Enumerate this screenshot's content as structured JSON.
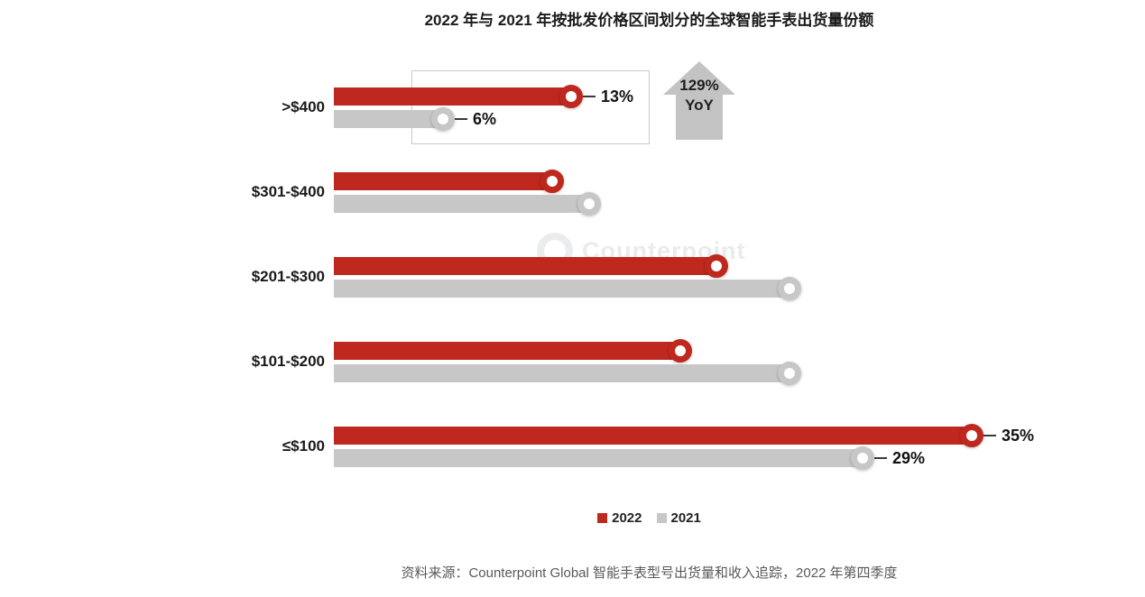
{
  "title": "2022 年与 2021 年按批发价格区间划分的全球智能手表出货量份额",
  "annotation": {
    "line1": "129%",
    "line2": "YoY"
  },
  "watermark": "Counterpoint",
  "legend": [
    {
      "label": "2022",
      "color": "#bf281e"
    },
    {
      "label": "2021",
      "color": "#c7c7c7"
    }
  ],
  "source": "资料来源：Counterpoint Global 智能手表型号出货量和收入追踪，2022 年第四季度",
  "chart_data": {
    "type": "bar",
    "orientation": "horizontal",
    "title": "2022 年与 2021 年按批发价格区间划分的全球智能手表出货量份额",
    "xlabel": "",
    "ylabel": "",
    "value_unit": "%",
    "xlim": [
      0,
      40
    ],
    "grid": false,
    "legend_position": "bottom",
    "categories": [
      ">$400",
      "$301-$400",
      "$201-$300",
      "$101-$200",
      "≤$100"
    ],
    "series": [
      {
        "name": "2022",
        "color": "#bf281e",
        "values": [
          13,
          12,
          21,
          19,
          35
        ],
        "labels": [
          "13%",
          "",
          "",
          "",
          "35%"
        ]
      },
      {
        "name": "2021",
        "color": "#c7c7c7",
        "values": [
          6,
          14,
          25,
          25,
          29
        ],
        "labels": [
          "6%",
          "",
          "",
          "",
          "29%"
        ]
      }
    ],
    "annotations": [
      {
        "text": "129% YoY",
        "type": "growth-arrow",
        "target_category": ">$400"
      }
    ]
  }
}
